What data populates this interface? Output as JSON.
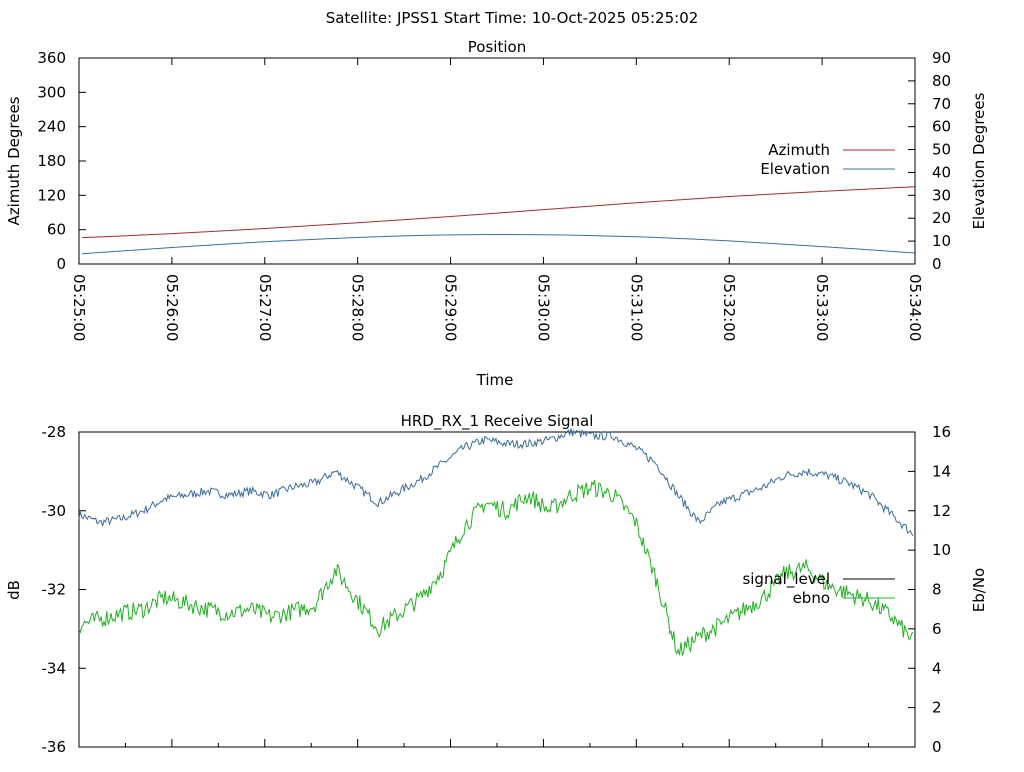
{
  "header": {
    "title": "Satellite: JPSS1    Start Time: 10-Oct-2025 05:25:02"
  },
  "chart_data": [
    {
      "type": "line",
      "title": "Position",
      "xlabel": "Time",
      "ylabel": "Azimuth Degrees",
      "y2label": "Elevation Degrees",
      "ylim": [
        0,
        360
      ],
      "y2lim": [
        0,
        90
      ],
      "yticks": [
        "0",
        "60",
        "120",
        "180",
        "240",
        "300",
        "360"
      ],
      "y2ticks": [
        "0",
        "10",
        "20",
        "30",
        "40",
        "50",
        "60",
        "70",
        "80",
        "90"
      ],
      "xticks": [
        "05:25:00",
        "05:26:00",
        "05:27:00",
        "05:28:00",
        "05:29:00",
        "05:30:00",
        "05:31:00",
        "05:32:00",
        "05:33:00",
        "05:34:00"
      ],
      "legend_position": "right",
      "series": [
        {
          "name": "Azimuth",
          "axis": "left",
          "color": "#a0302a",
          "x": [
            "05:25:02",
            "05:26:00",
            "05:27:00",
            "05:28:00",
            "05:29:00",
            "05:30:00",
            "05:31:00",
            "05:32:00",
            "05:33:00",
            "05:34:00"
          ],
          "values": [
            46,
            53,
            62,
            72,
            83,
            95,
            107,
            118,
            127,
            135
          ]
        },
        {
          "name": "Elevation",
          "axis": "right",
          "color": "#3c6e9e",
          "x": [
            "05:25:02",
            "05:26:00",
            "05:27:00",
            "05:28:00",
            "05:29:00",
            "05:30:00",
            "05:31:00",
            "05:32:00",
            "05:33:00",
            "05:34:00"
          ],
          "values": [
            4.5,
            7.2,
            9.7,
            11.6,
            12.7,
            12.8,
            11.9,
            10.1,
            7.6,
            4.8
          ]
        }
      ]
    },
    {
      "type": "line",
      "title": "HRD_RX_1 Receive Signal",
      "xlabel": "",
      "ylabel": "dB",
      "y2label": "Eb/No",
      "ylim": [
        -36,
        -28
      ],
      "y2lim": [
        0,
        16
      ],
      "yticks": [
        "-36",
        "-34",
        "-32",
        "-30",
        "-28"
      ],
      "y2ticks": [
        "0",
        "2",
        "4",
        "6",
        "8",
        "10",
        "12",
        "14",
        "16"
      ],
      "x_minor_ticks": 18,
      "legend_position": "right",
      "series": [
        {
          "name": "signal_level",
          "axis": "left",
          "color": "#3c6e9e",
          "legend_color": "#000000",
          "values": [
            -30.1,
            -30.3,
            -30.2,
            -30.0,
            -29.7,
            -29.6,
            -29.5,
            -29.6,
            -29.5,
            -29.6,
            -29.4,
            -29.3,
            -29.0,
            -29.4,
            -29.8,
            -29.5,
            -29.2,
            -28.8,
            -28.4,
            -28.2,
            -28.3,
            -28.3,
            -28.2,
            -28.0,
            -28.1,
            -28.1,
            -28.4,
            -28.8,
            -29.6,
            -30.3,
            -29.8,
            -29.6,
            -29.4,
            -29.1,
            -29.0,
            -29.1,
            -29.3,
            -29.6,
            -30.1,
            -30.6
          ]
        },
        {
          "name": "ebno",
          "axis": "right",
          "color": "#22b022",
          "legend_color": "#22b022",
          "values": [
            6.2,
            6.5,
            6.8,
            7.0,
            7.6,
            7.3,
            7.0,
            6.8,
            7.0,
            6.6,
            6.9,
            7.2,
            9.0,
            7.5,
            6.0,
            6.8,
            7.6,
            9.0,
            11.2,
            12.4,
            12.0,
            12.8,
            12.0,
            12.8,
            13.2,
            12.8,
            11.5,
            8.5,
            4.8,
            5.6,
            6.2,
            6.9,
            7.6,
            8.8,
            9.1,
            8.2,
            7.8,
            7.4,
            6.6,
            5.4
          ]
        }
      ]
    }
  ]
}
